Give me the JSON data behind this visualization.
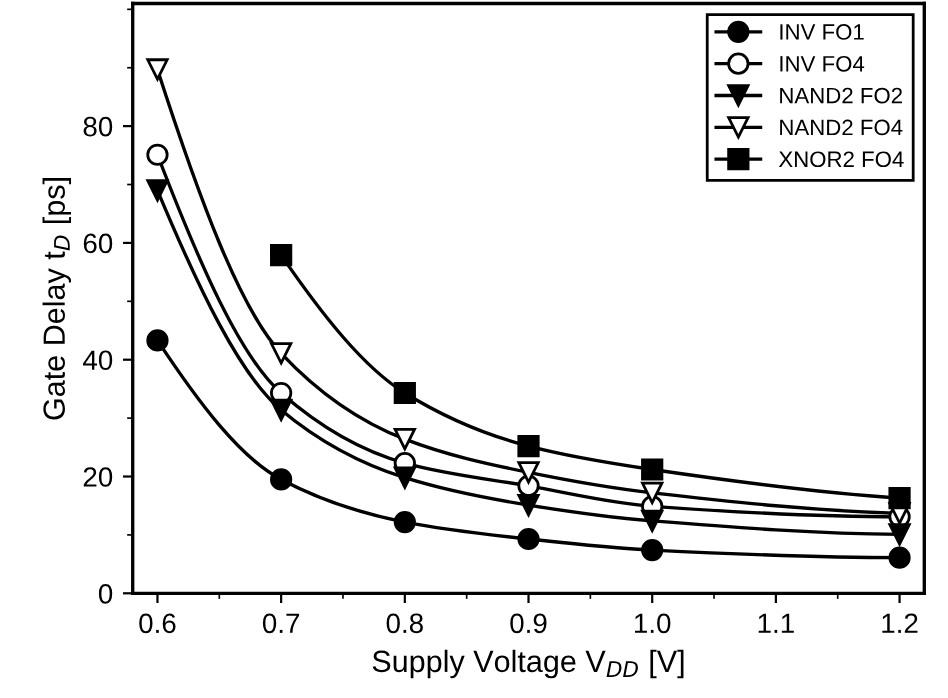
{
  "chart_data": {
    "type": "line",
    "xlabel": "Supply Voltage V$_{DD}$ [V]",
    "ylabel": "Gate Delay t$_{D}$ [ps]",
    "x": [
      0.6,
      0.7,
      0.8,
      0.9,
      1.0,
      1.2
    ],
    "xlim": [
      0.58,
      1.22
    ],
    "xticks": [
      0.6,
      0.7,
      0.8,
      0.9,
      {
        "value": 1,
        "label": "1.0"
      },
      1.1,
      1.2
    ],
    "ylim": [
      0,
      101
    ],
    "yticks": [
      0,
      20,
      40,
      60,
      80
    ],
    "grid": false,
    "legend": "top right",
    "line_style": "solid",
    "series": [
      {
        "name": "INV FO1",
        "color": "#000000",
        "marker": "circle",
        "values": [
          43.3,
          19.5,
          12.2,
          9.3,
          7.4,
          6.1
        ]
      },
      {
        "name": "INV FO4",
        "color": "#000000",
        "marker": "circle-open",
        "values": [
          75.1,
          34.3,
          22.3,
          18.4,
          14.9,
          13.1
        ]
      },
      {
        "name": "NAND2 FO2",
        "color": "#000000",
        "marker": "triangle",
        "values": [
          69.0,
          31.4,
          19.8,
          15.1,
          12.4,
          10.1
        ]
      },
      {
        "name": "NAND2 FO4",
        "color": "#000000",
        "marker": "triangle-open",
        "values": [
          89.7,
          41.1,
          26.4,
          20.7,
          17.2,
          13.7
        ]
      },
      {
        "name": "XNOR2 FO4",
        "color": "#000000",
        "marker": "square",
        "values": [
          null,
          57.9,
          34.3,
          25.2,
          21.2,
          16.3
        ]
      }
    ]
  }
}
